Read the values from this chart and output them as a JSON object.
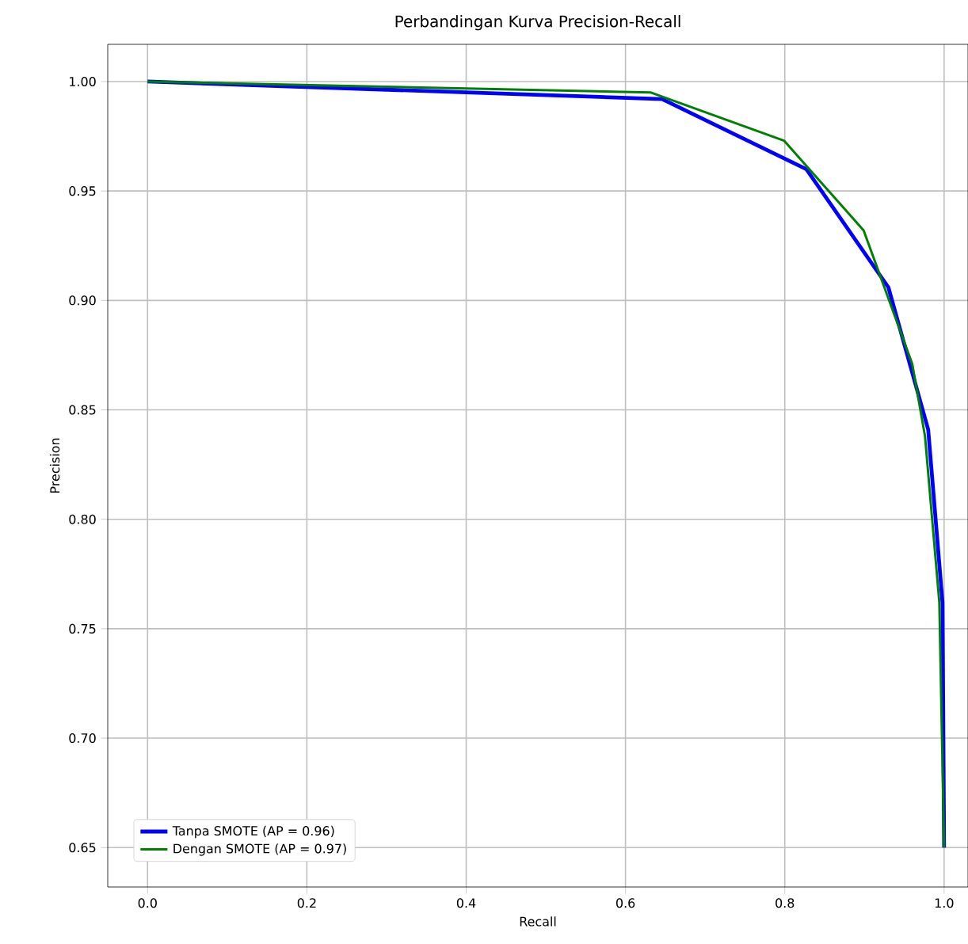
{
  "chart_data": {
    "type": "line",
    "title": "Perbandingan Kurva Precision-Recall",
    "xlabel": "Recall",
    "ylabel": "Precision",
    "xlim": [
      -0.05,
      1.03
    ],
    "ylim": [
      0.632,
      1.017
    ],
    "xticks": [
      {
        "value": 0,
        "label": "0.0"
      },
      {
        "value": 0.2,
        "label": "0.2"
      },
      {
        "value": 0.4,
        "label": "0.4"
      },
      {
        "value": 0.6,
        "label": "0.6"
      },
      {
        "value": 0.8,
        "label": "0.8"
      },
      {
        "value": 1,
        "label": "1.0"
      }
    ],
    "yticks": [
      {
        "value": 0.65,
        "label": "0.65"
      },
      {
        "value": 0.7,
        "label": "0.70"
      },
      {
        "value": 0.75,
        "label": "0.75"
      },
      {
        "value": 0.8,
        "label": "0.80"
      },
      {
        "value": 0.85,
        "label": "0.85"
      },
      {
        "value": 0.9,
        "label": "0.90"
      },
      {
        "value": 0.95,
        "label": "0.95"
      },
      {
        "value": 1,
        "label": "1.00"
      }
    ],
    "grid": true,
    "legend": "bottom left",
    "marker": "none",
    "line_style": "solid",
    "series": [
      {
        "name": "Tanpa SMOTE (AP = 0.96)",
        "color": "#0000ff",
        "x": [
          0,
          0.646,
          0.827,
          0.93,
          0.98,
          0.998,
          1.0
        ],
        "values": [
          1.0,
          0.992,
          0.96,
          0.906,
          0.841,
          0.762,
          0.65
        ]
      },
      {
        "name": "Dengan SMOTE (AP = 0.97)",
        "color": "#008000",
        "x": [
          0,
          0.632,
          0.799,
          0.899,
          0.96,
          0.976,
          0.994,
          1.0
        ],
        "values": [
          1.0,
          0.995,
          0.973,
          0.932,
          0.871,
          0.838,
          0.762,
          0.65
        ]
      }
    ]
  }
}
